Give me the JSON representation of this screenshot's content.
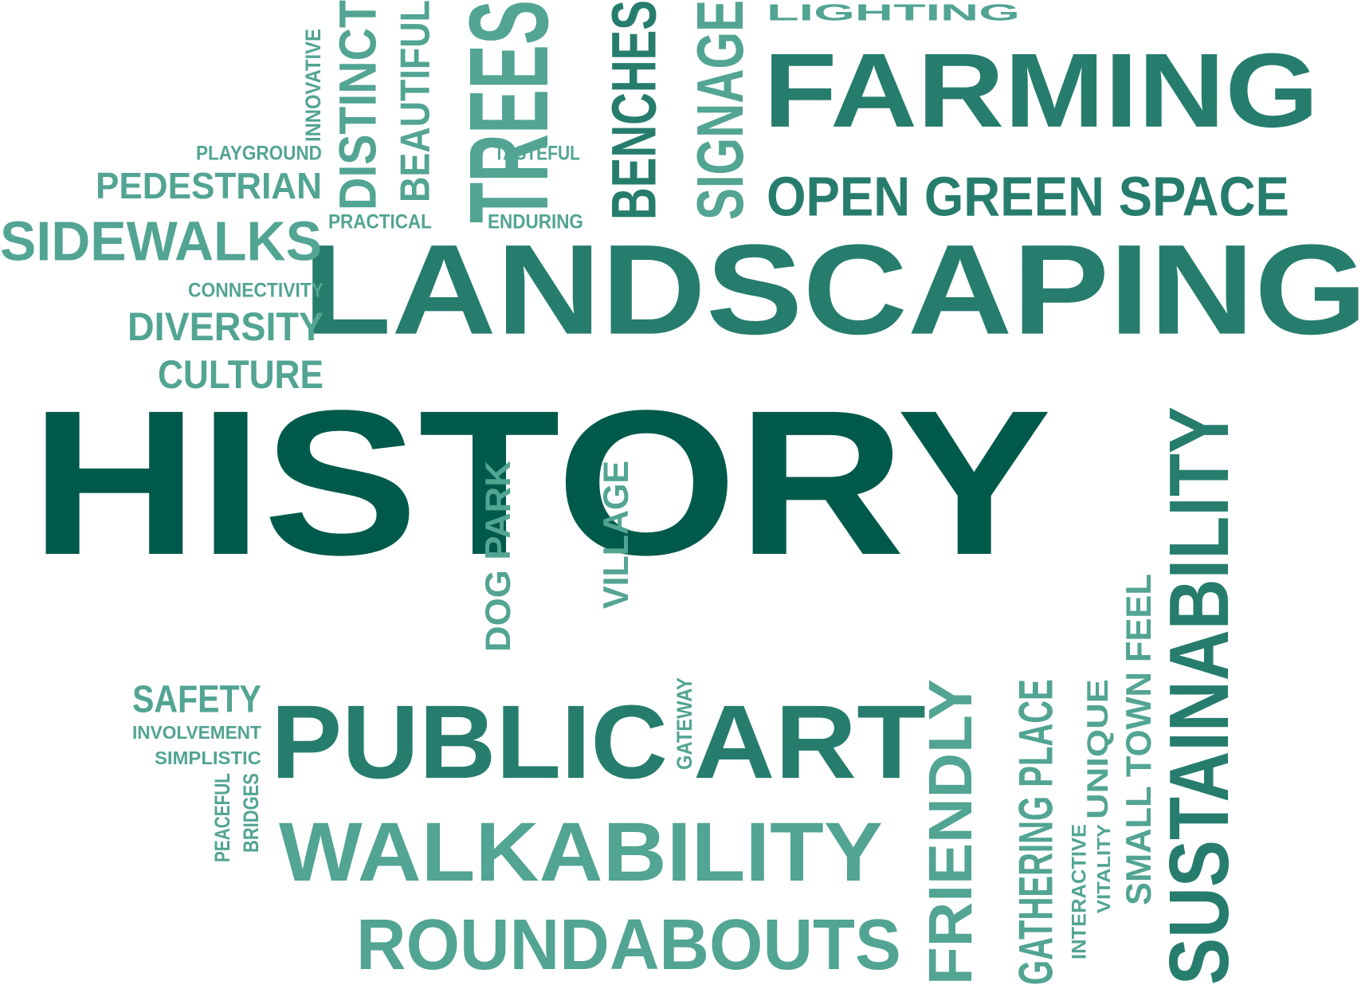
{
  "colors": {
    "dark": "#005a4b",
    "mid": "#267d6d",
    "light": "#52a493"
  },
  "words": [
    {
      "text": "HISTORY",
      "tone": "dark"
    },
    {
      "text": "LANDSCAPING",
      "tone": "mid"
    },
    {
      "text": "FARMING",
      "tone": "mid"
    },
    {
      "text": "PUBLIC",
      "tone": "mid"
    },
    {
      "text": "ART",
      "tone": "mid"
    },
    {
      "text": "WALKABILITY",
      "tone": "light"
    },
    {
      "text": "ROUNDABOUTS",
      "tone": "light"
    },
    {
      "text": "OPEN GREEN SPACE",
      "tone": "mid"
    },
    {
      "text": "LIGHTING",
      "tone": "light"
    },
    {
      "text": "SIDEWALKS",
      "tone": "light"
    },
    {
      "text": "PEDESTRIAN",
      "tone": "light"
    },
    {
      "text": "PLAYGROUND",
      "tone": "light"
    },
    {
      "text": "TASTEFUL",
      "tone": "light"
    },
    {
      "text": "PRACTICAL",
      "tone": "light"
    },
    {
      "text": "ENDURING",
      "tone": "light"
    },
    {
      "text": "CONNECTIVITY",
      "tone": "light"
    },
    {
      "text": "DIVERSITY",
      "tone": "light"
    },
    {
      "text": "CULTURE",
      "tone": "light"
    },
    {
      "text": "SAFETY",
      "tone": "light"
    },
    {
      "text": "INVOLVEMENT",
      "tone": "light"
    },
    {
      "text": "SIMPLISTIC",
      "tone": "light"
    },
    {
      "text": "INNOVATIVE",
      "tone": "light"
    },
    {
      "text": "DISTINCT",
      "tone": "light"
    },
    {
      "text": "BEAUTIFUL",
      "tone": "light"
    },
    {
      "text": "TREES",
      "tone": "light"
    },
    {
      "text": "BENCHES",
      "tone": "mid"
    },
    {
      "text": "SIGNAGE",
      "tone": "light"
    },
    {
      "text": "DOG PARK",
      "tone": "light"
    },
    {
      "text": "VILLAGE",
      "tone": "light"
    },
    {
      "text": "SUSTAINABILITY",
      "tone": "mid"
    },
    {
      "text": "FRIENDLY",
      "tone": "light"
    },
    {
      "text": "GATHERING PLACE",
      "tone": "light"
    },
    {
      "text": "UNIQUE",
      "tone": "light"
    },
    {
      "text": "SMALL TOWN FEEL",
      "tone": "light"
    },
    {
      "text": "INTERACTIVE",
      "tone": "light"
    },
    {
      "text": "VITALITY",
      "tone": "light"
    },
    {
      "text": "GATEWAY",
      "tone": "light"
    },
    {
      "text": "PEACEFUL",
      "tone": "light"
    },
    {
      "text": "BRIDGES",
      "tone": "light"
    }
  ]
}
